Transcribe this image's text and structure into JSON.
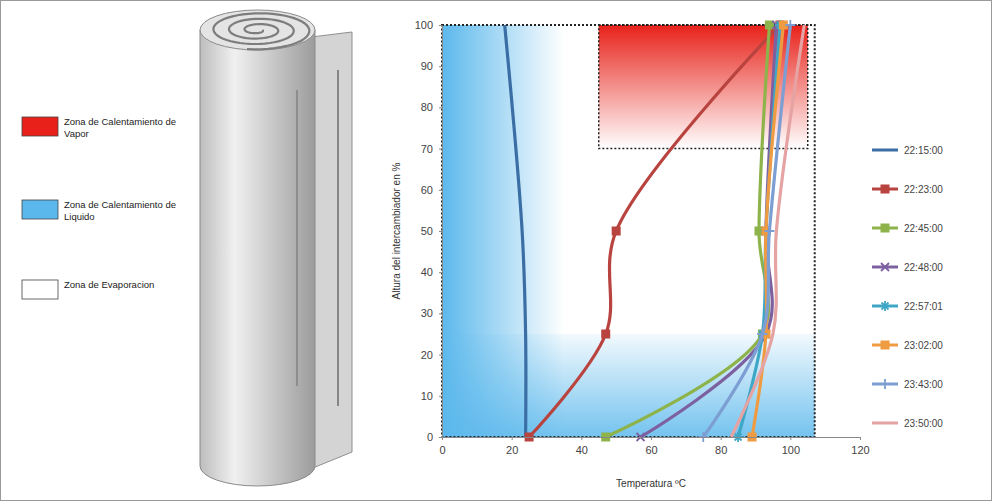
{
  "chart_data": {
    "type": "line",
    "x_label": "Temperatura ºC",
    "y_label": "Altura del intercambiador en %",
    "xlim": [
      0,
      120
    ],
    "xticks": [
      0,
      20,
      40,
      60,
      80,
      100,
      120
    ],
    "ylim": [
      0,
      100
    ],
    "yticks": [
      0,
      10,
      20,
      30,
      40,
      50,
      60,
      70,
      80,
      90,
      100
    ],
    "legend": "right",
    "zones": [
      {
        "name": "Zona de Calentamiento de Vapor",
        "color": "#e8221a",
        "areas": [
          {
            "x": [
              45,
              105
            ],
            "y": [
              70,
              100
            ]
          }
        ]
      },
      {
        "name": "Zona de Calentamiento de Liquido",
        "color": "#5bb8ec",
        "areas": [
          {
            "x": [
              0,
              107
            ],
            "y": [
              0,
              25
            ]
          },
          {
            "x": [
              0,
              35
            ],
            "y": [
              0,
              100
            ]
          }
        ]
      },
      {
        "name": "Zona de Evaporacion",
        "color": "#ffffff"
      }
    ],
    "series": [
      {
        "name": "22:15:00",
        "color": "#3a6ea5",
        "marker": "none",
        "x": [
          24,
          24,
          23,
          18
        ],
        "values": [
          0,
          25,
          50,
          100
        ]
      },
      {
        "name": "22:23:00",
        "color": "#b8433f",
        "marker": "square",
        "x": [
          25,
          47,
          50,
          97
        ],
        "values": [
          0,
          25,
          50,
          100
        ]
      },
      {
        "name": "22:45:00",
        "color": "#8db34a",
        "marker": "square",
        "x": [
          47,
          92,
          91,
          94
        ],
        "values": [
          0,
          25,
          50,
          100
        ]
      },
      {
        "name": "22:48:00",
        "color": "#7d60a0",
        "marker": "x",
        "x": [
          57,
          93,
          93,
          96
        ],
        "values": [
          0,
          25,
          50,
          100
        ]
      },
      {
        "name": "22:57:01",
        "color": "#3fa7c6",
        "marker": "star",
        "x": [
          85,
          92,
          93,
          97
        ],
        "values": [
          0,
          25,
          50,
          100
        ]
      },
      {
        "name": "23:02:00",
        "color": "#ef9b42",
        "marker": "square",
        "x": [
          89,
          93,
          93,
          98
        ],
        "values": [
          0,
          25,
          50,
          100
        ]
      },
      {
        "name": "23:43:00",
        "color": "#7d9ed2",
        "marker": "plus",
        "x": [
          75,
          92,
          94,
          100
        ],
        "values": [
          0,
          25,
          50,
          100
        ]
      },
      {
        "name": "23:50:00",
        "color": "#e5a3a3",
        "marker": "none",
        "x": [
          83,
          95,
          96,
          104
        ],
        "values": [
          0,
          25,
          50,
          100
        ]
      }
    ]
  }
}
